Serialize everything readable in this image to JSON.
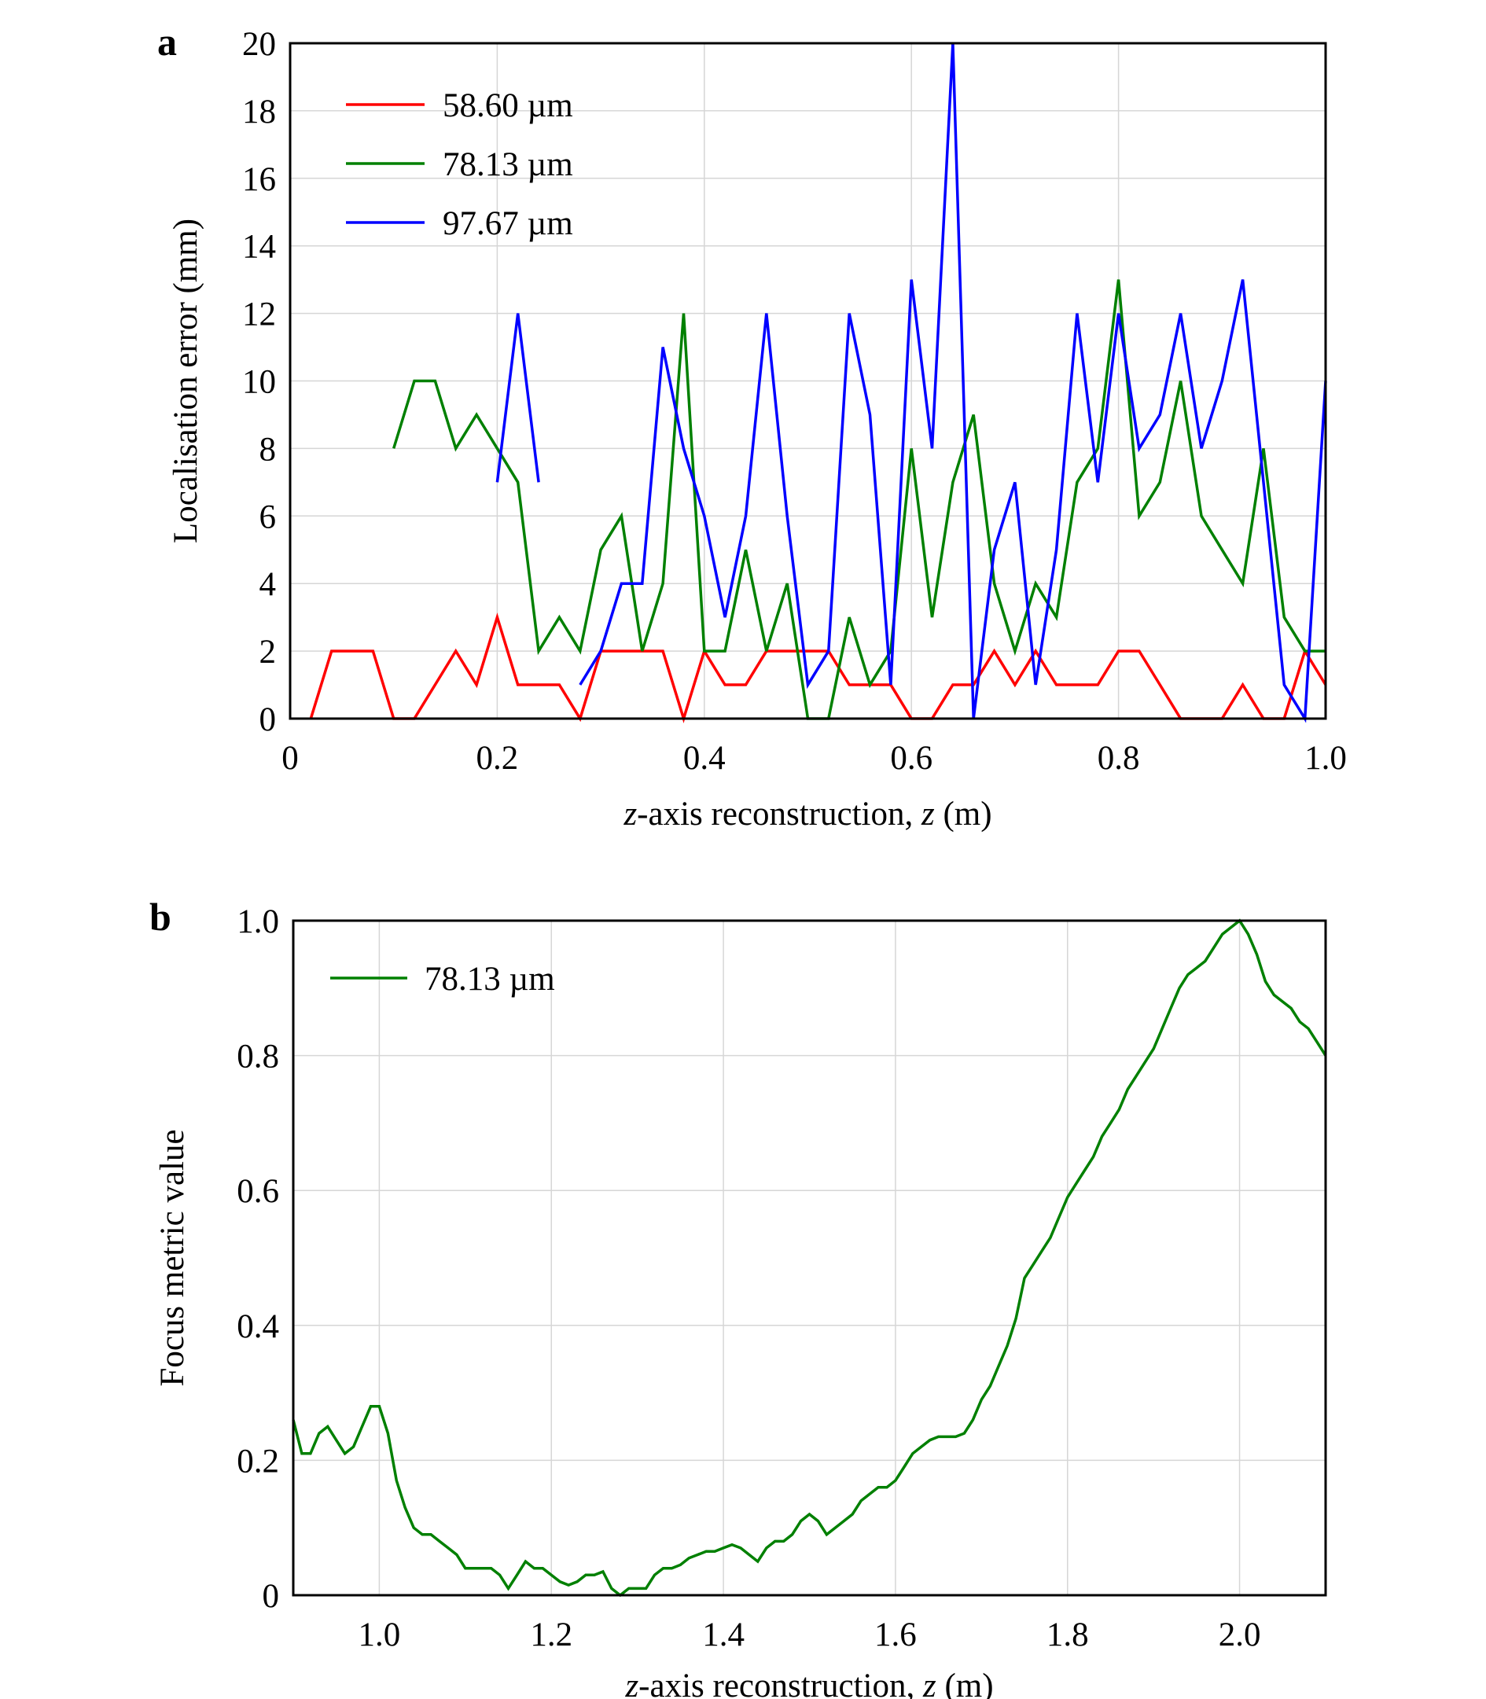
{
  "chart_data": [
    {
      "type": "line",
      "panel_label": "a",
      "xlabel_var": "z",
      "xlabel_text": "-axis reconstruction, ",
      "xlabel_var2": "z",
      "xlabel_unit": " (m)",
      "ylabel": "Localisation error (mm)",
      "xlim": [
        0,
        1.0
      ],
      "ylim": [
        0,
        20
      ],
      "xticks": [
        0,
        0.2,
        0.4,
        0.6,
        0.8,
        1.0
      ],
      "xtick_labels": [
        "0",
        "0.2",
        "0.4",
        "0.6",
        "0.8",
        "1.0"
      ],
      "yticks": [
        0,
        2,
        4,
        6,
        8,
        10,
        12,
        14,
        16,
        18,
        20
      ],
      "ytick_labels": [
        "0",
        "2",
        "4",
        "6",
        "8",
        "10",
        "12",
        "14",
        "16",
        "18",
        "20"
      ],
      "grid": true,
      "legend_position": "top-left",
      "series": [
        {
          "name": "58.60 µm",
          "color": "#ff0000",
          "x": [
            0.02,
            0.04,
            0.06,
            0.08,
            0.1,
            0.12,
            0.14,
            0.16,
            0.18,
            0.2,
            0.22,
            0.24,
            0.26,
            0.28,
            0.3,
            0.32,
            0.34,
            0.36,
            0.38,
            0.4,
            0.42,
            0.44,
            0.46,
            0.48,
            0.5,
            0.52,
            0.54,
            0.56,
            0.58,
            0.6,
            0.62,
            0.64,
            0.66,
            0.68,
            0.7,
            0.72,
            0.74,
            0.76,
            0.78,
            0.8,
            0.82,
            0.84,
            0.86,
            0.88,
            0.9,
            0.92,
            0.94,
            0.96,
            0.98,
            1.0
          ],
          "y": [
            0,
            2,
            2,
            2,
            0,
            0,
            1,
            2,
            1,
            3,
            1,
            1,
            1,
            0,
            2,
            2,
            2,
            2,
            0,
            2,
            1,
            1,
            2,
            2,
            2,
            2,
            1,
            1,
            1,
            0,
            0,
            1,
            1,
            2,
            1,
            2,
            1,
            1,
            1,
            2,
            2,
            1,
            0,
            0,
            0,
            1,
            0,
            0,
            2,
            1
          ]
        },
        {
          "name": "78.13 µm",
          "color": "#008000",
          "x": [
            0.1,
            0.12,
            0.14,
            0.16,
            0.18,
            0.2,
            0.22,
            0.24,
            0.26,
            0.28,
            0.3,
            0.32,
            0.34,
            0.36,
            0.38,
            0.4,
            0.42,
            0.44,
            0.46,
            0.48,
            0.5,
            0.52,
            0.54,
            0.56,
            0.58,
            0.6,
            0.62,
            0.64,
            0.66,
            0.68,
            0.7,
            0.72,
            0.74,
            0.76,
            0.78,
            0.8,
            0.82,
            0.84,
            0.86,
            0.88,
            0.9,
            0.92,
            0.94,
            0.96,
            0.98,
            1.0
          ],
          "y": [
            8,
            10,
            10,
            8,
            9,
            8,
            7,
            2,
            3,
            2,
            5,
            6,
            2,
            4,
            12,
            2,
            2,
            5,
            2,
            4,
            0,
            0,
            3,
            1,
            2,
            8,
            3,
            7,
            9,
            4,
            2,
            4,
            3,
            7,
            8,
            13,
            6,
            7,
            10,
            6,
            5,
            4,
            8,
            3,
            2,
            2
          ]
        },
        {
          "name": "97.67 µm",
          "color": "#0000ff",
          "segments": [
            {
              "x": [
                0.2,
                0.22,
                0.24
              ],
              "y": [
                7,
                12,
                7
              ]
            },
            {
              "x": [
                0.28,
                0.3,
                0.32,
                0.34,
                0.36,
                0.38,
                0.4,
                0.42,
                0.44,
                0.46,
                0.48,
                0.5,
                0.52,
                0.54,
                0.56,
                0.58,
                0.6,
                0.62,
                0.64,
                0.66,
                0.68,
                0.7,
                0.72,
                0.74,
                0.76,
                0.78,
                0.8,
                0.82,
                0.84,
                0.86,
                0.88,
                0.9,
                0.92,
                0.94,
                0.96,
                0.98,
                1.0
              ],
              "y": [
                1,
                2,
                4,
                4,
                11,
                8,
                6,
                3,
                6,
                12,
                6,
                1,
                2,
                12,
                9,
                1,
                13,
                8,
                20,
                0,
                5,
                7,
                1,
                5,
                12,
                7,
                12,
                8,
                9,
                12,
                8,
                10,
                13,
                7,
                1,
                0,
                10
              ]
            }
          ]
        }
      ]
    },
    {
      "type": "line",
      "panel_label": "b",
      "xlabel_var": "z",
      "xlabel_text": "-axis reconstruction, ",
      "xlabel_var2": "z",
      "xlabel_unit": " (m)",
      "ylabel": "Focus metric value",
      "xlim": [
        0.9,
        2.1
      ],
      "ylim": [
        0,
        1.0
      ],
      "xticks": [
        1.0,
        1.2,
        1.4,
        1.6,
        1.8,
        2.0
      ],
      "xtick_labels": [
        "1.0",
        "1.2",
        "1.4",
        "1.6",
        "1.8",
        "2.0"
      ],
      "yticks": [
        0,
        0.2,
        0.4,
        0.6,
        0.8,
        1.0
      ],
      "ytick_labels": [
        "0",
        "0.2",
        "0.4",
        "0.6",
        "0.8",
        "1.0"
      ],
      "grid": true,
      "legend_position": "top-left",
      "series": [
        {
          "name": "78.13 µm",
          "color": "#008000",
          "x": [
            0.9,
            0.91,
            0.92,
            0.93,
            0.94,
            0.95,
            0.96,
            0.97,
            0.98,
            0.99,
            1.0,
            1.01,
            1.02,
            1.03,
            1.04,
            1.05,
            1.06,
            1.07,
            1.08,
            1.09,
            1.1,
            1.11,
            1.12,
            1.13,
            1.14,
            1.15,
            1.16,
            1.17,
            1.18,
            1.19,
            1.2,
            1.21,
            1.22,
            1.23,
            1.24,
            1.25,
            1.26,
            1.27,
            1.28,
            1.29,
            1.3,
            1.31,
            1.32,
            1.33,
            1.34,
            1.35,
            1.36,
            1.37,
            1.38,
            1.39,
            1.4,
            1.41,
            1.42,
            1.43,
            1.44,
            1.45,
            1.46,
            1.47,
            1.48,
            1.49,
            1.5,
            1.51,
            1.52,
            1.53,
            1.54,
            1.55,
            1.56,
            1.57,
            1.58,
            1.59,
            1.6,
            1.61,
            1.62,
            1.63,
            1.64,
            1.65,
            1.66,
            1.67,
            1.68,
            1.69,
            1.7,
            1.71,
            1.72,
            1.73,
            1.74,
            1.75,
            1.76,
            1.77,
            1.78,
            1.79,
            1.8,
            1.81,
            1.82,
            1.83,
            1.84,
            1.85,
            1.86,
            1.87,
            1.88,
            1.89,
            1.9,
            1.91,
            1.92,
            1.93,
            1.94,
            1.95,
            1.96,
            1.97,
            1.98,
            1.99,
            2.0,
            2.01,
            2.02,
            2.03,
            2.04,
            2.05,
            2.06,
            2.07,
            2.08,
            2.09,
            2.1
          ],
          "y": [
            0.26,
            0.21,
            0.21,
            0.24,
            0.25,
            0.23,
            0.21,
            0.22,
            0.25,
            0.28,
            0.28,
            0.24,
            0.17,
            0.13,
            0.1,
            0.09,
            0.09,
            0.08,
            0.07,
            0.06,
            0.04,
            0.04,
            0.04,
            0.04,
            0.03,
            0.01,
            0.03,
            0.05,
            0.04,
            0.04,
            0.03,
            0.02,
            0.015,
            0.02,
            0.03,
            0.03,
            0.035,
            0.01,
            0.0,
            0.01,
            0.01,
            0.01,
            0.03,
            0.04,
            0.04,
            0.045,
            0.055,
            0.06,
            0.065,
            0.065,
            0.07,
            0.075,
            0.07,
            0.06,
            0.05,
            0.07,
            0.08,
            0.08,
            0.09,
            0.11,
            0.12,
            0.11,
            0.09,
            0.1,
            0.11,
            0.12,
            0.14,
            0.15,
            0.16,
            0.16,
            0.17,
            0.19,
            0.21,
            0.22,
            0.23,
            0.235,
            0.235,
            0.235,
            0.24,
            0.26,
            0.29,
            0.31,
            0.34,
            0.37,
            0.41,
            0.47,
            0.49,
            0.51,
            0.53,
            0.56,
            0.59,
            0.61,
            0.63,
            0.65,
            0.68,
            0.7,
            0.72,
            0.75,
            0.77,
            0.79,
            0.81,
            0.84,
            0.87,
            0.9,
            0.92,
            0.93,
            0.94,
            0.96,
            0.98,
            0.99,
            1.0,
            0.98,
            0.95,
            0.91,
            0.89,
            0.88,
            0.87,
            0.85,
            0.84,
            0.82,
            0.8
          ]
        }
      ]
    }
  ]
}
